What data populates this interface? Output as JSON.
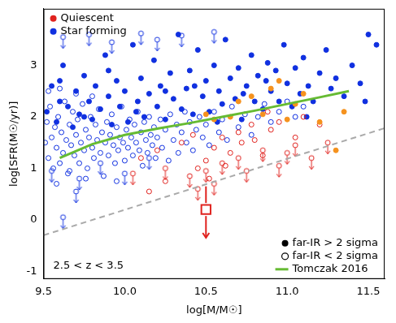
{
  "chart_data": {
    "type": "scatter",
    "x_label": "log[M/M☉]",
    "y_label": "log[SFR(M☉/yr)]",
    "annotation": "2.5 < z < 3.5",
    "xlim": [
      9.5,
      11.6
    ],
    "xticks": [
      9.5,
      {
        "value": 10,
        "label": "10.0"
      },
      10.5,
      {
        "value": 11,
        "label": "11.0"
      },
      11.5
    ],
    "ylim": [
      -1.15,
      4.1
    ],
    "yticks": [
      -1,
      0,
      1,
      2,
      3
    ],
    "grid": false,
    "legends": [
      {
        "legend": "upper left",
        "entries": [
          {
            "name": "Quiescent",
            "color": "#e0221e",
            "marker": "circle"
          },
          {
            "name": "Star forming",
            "color": "#1030e0",
            "marker": "circle"
          }
        ]
      },
      {
        "legend": "lower right",
        "entries": [
          {
            "name": "far-IR > 2 sigma",
            "color": "#000000",
            "marker": "circle"
          },
          {
            "name": "far-IR < 2 sigma",
            "color": "#000000",
            "marker": "circle_open"
          },
          {
            "name": "Tomczak 2016",
            "color": "#66bb33",
            "marker": "line"
          }
        ]
      }
    ],
    "series": [
      {
        "type": "scatter",
        "color": "#1030e0",
        "marker": "circle_open",
        "x": [
          9.51,
          9.52,
          9.53,
          9.54,
          9.55,
          9.56,
          9.57,
          9.58,
          9.59,
          9.6,
          9.61,
          9.62,
          9.63,
          9.64,
          9.65,
          9.66,
          9.67,
          9.68,
          9.69,
          9.7,
          9.71,
          9.72,
          9.73,
          9.74,
          9.75,
          9.76,
          9.77,
          9.78,
          9.79,
          9.8,
          9.81,
          9.82,
          9.83,
          9.84,
          9.85,
          9.86,
          9.87,
          9.88,
          9.89,
          9.9,
          9.91,
          9.92,
          9.93,
          9.94,
          9.95,
          9.96,
          9.97,
          9.98,
          9.99,
          10.0,
          10.01,
          10.02,
          10.03,
          10.04,
          10.05,
          10.06,
          10.07,
          10.08,
          10.09,
          10.1,
          10.11,
          10.12,
          10.13,
          10.14,
          10.15,
          10.16,
          10.17,
          10.18,
          10.19,
          10.2,
          10.22,
          10.23,
          10.25,
          10.27,
          10.28,
          10.3,
          10.32,
          10.33,
          10.35,
          10.37,
          10.38,
          10.4,
          10.42,
          10.44,
          10.46,
          10.48,
          10.5,
          10.52,
          10.55,
          10.58,
          10.6,
          10.63,
          10.66,
          10.7,
          10.74,
          10.78,
          10.82,
          10.86,
          10.9,
          10.95,
          11.0,
          11.05,
          11.1,
          9.53,
          9.6,
          9.7,
          9.8,
          9.95,
          9.58,
          9.66,
          9.76
        ],
        "values": [
          1.5,
          1.9,
          1.2,
          2.2,
          1.6,
          1.0,
          1.8,
          1.4,
          2.0,
          1.1,
          1.7,
          1.3,
          2.3,
          1.55,
          0.9,
          1.85,
          1.45,
          2.1,
          1.25,
          1.65,
          1.95,
          1.1,
          1.5,
          2.25,
          1.35,
          1.75,
          1.0,
          1.6,
          2.0,
          1.4,
          1.2,
          1.85,
          1.55,
          2.15,
          1.3,
          1.7,
          0.85,
          1.5,
          1.9,
          1.25,
          1.65,
          2.05,
          1.45,
          1.1,
          1.8,
          1.35,
          1.6,
          2.2,
          1.5,
          1.15,
          1.75,
          1.4,
          1.95,
          1.6,
          1.25,
          1.85,
          1.5,
          2.1,
          1.35,
          1.7,
          1.05,
          1.9,
          1.55,
          1.3,
          2.0,
          1.65,
          1.45,
          1.8,
          1.2,
          1.6,
          1.95,
          1.4,
          1.75,
          1.15,
          2.05,
          1.55,
          1.85,
          1.3,
          1.7,
          2.1,
          1.5,
          1.9,
          1.35,
          1.75,
          2.0,
          1.6,
          1.85,
          1.45,
          2.1,
          1.7,
          1.95,
          1.55,
          2.2,
          1.8,
          2.05,
          1.65,
          2.0,
          2.25,
          1.9,
          2.1,
          2.3,
          2.0,
          2.2,
          2.5,
          2.55,
          2.45,
          2.4,
          0.75,
          0.7,
          0.95,
          0.8
        ]
      },
      {
        "type": "scatter",
        "color": "#1030e0",
        "marker": "circle_open_arrow",
        "x": [
          9.62,
          9.78,
          9.92,
          10.1,
          10.2,
          10.35,
          10.55,
          9.55,
          9.72,
          9.85,
          10.0,
          10.15,
          9.62,
          9.7
        ],
        "values": [
          3.55,
          3.6,
          3.45,
          3.62,
          3.5,
          3.58,
          3.65,
          0.95,
          0.8,
          1.1,
          0.9,
          1.2,
          0.05,
          0.55
        ]
      },
      {
        "type": "scatter",
        "color": "#1030e0",
        "marker": "circle",
        "x": [
          9.52,
          9.55,
          9.58,
          9.6,
          9.62,
          9.65,
          9.68,
          9.7,
          9.72,
          9.75,
          9.78,
          9.8,
          9.82,
          9.85,
          9.88,
          9.9,
          9.92,
          9.95,
          9.97,
          10.0,
          10.02,
          10.05,
          10.08,
          10.1,
          10.12,
          10.15,
          10.18,
          10.2,
          10.22,
          10.25,
          10.28,
          10.3,
          10.33,
          10.35,
          10.38,
          10.4,
          10.42,
          10.45,
          10.48,
          10.5,
          10.52,
          10.55,
          10.58,
          10.6,
          10.62,
          10.65,
          10.68,
          10.7,
          10.72,
          10.75,
          10.78,
          10.8,
          10.82,
          10.85,
          10.88,
          10.9,
          10.93,
          10.95,
          10.98,
          11.0,
          11.03,
          11.05,
          11.08,
          11.1,
          11.13,
          11.16,
          11.2,
          11.24,
          11.27,
          11.3,
          11.35,
          11.4,
          11.45,
          11.5,
          11.55,
          9.6,
          9.75,
          9.9,
          10.07,
          10.25,
          10.43,
          10.57,
          10.73,
          10.87,
          11.12,
          11.48
        ],
        "values": [
          2.1,
          2.6,
          1.9,
          2.3,
          3.0,
          2.2,
          1.8,
          2.5,
          2.05,
          2.8,
          2.3,
          1.95,
          2.6,
          2.15,
          3.2,
          2.4,
          1.85,
          2.7,
          2.2,
          2.5,
          1.9,
          3.4,
          2.3,
          2.75,
          2.0,
          2.45,
          3.1,
          2.2,
          2.6,
          1.95,
          2.85,
          2.35,
          3.6,
          2.15,
          2.55,
          2.9,
          2.05,
          3.3,
          2.4,
          2.7,
          2.1,
          3.0,
          2.5,
          2.25,
          3.5,
          2.75,
          2.35,
          2.95,
          1.95,
          2.6,
          3.2,
          2.3,
          2.8,
          2.15,
          3.05,
          2.5,
          2.9,
          2.3,
          3.4,
          2.65,
          2.2,
          2.95,
          2.45,
          3.15,
          2.6,
          2.3,
          2.85,
          3.3,
          2.55,
          2.75,
          2.4,
          3.0,
          2.65,
          3.6,
          3.4,
          2.7,
          2.0,
          2.9,
          2.1,
          2.5,
          2.6,
          1.9,
          2.45,
          2.7,
          2.0,
          2.3
        ]
      },
      {
        "type": "scatter",
        "color": "#e0221e",
        "marker": "circle_open",
        "x": [
          10.1,
          10.2,
          10.35,
          10.45,
          10.5,
          10.52,
          10.55,
          10.6,
          10.65,
          10.7,
          10.72,
          10.78,
          10.8,
          10.85,
          10.9,
          10.95,
          11.05,
          11.1,
          11.2,
          10.25,
          10.15,
          10.42,
          10.62,
          10.88
        ],
        "values": [
          1.2,
          1.35,
          1.5,
          1.0,
          1.15,
          0.8,
          1.4,
          1.6,
          1.3,
          1.7,
          1.5,
          1.85,
          1.55,
          1.25,
          1.75,
          1.9,
          1.6,
          2.0,
          1.85,
          0.75,
          0.55,
          1.65,
          1.05,
          2.1
        ]
      },
      {
        "type": "scatter",
        "color": "#e0221e",
        "marker": "circle_open_arrow",
        "x": [
          10.05,
          10.25,
          10.4,
          10.5,
          10.55,
          10.6,
          10.7,
          10.75,
          10.85,
          10.95,
          11.0,
          11.05,
          11.15,
          11.25,
          10.45
        ],
        "values": [
          0.9,
          1.0,
          0.85,
          0.95,
          0.7,
          1.1,
          1.2,
          0.95,
          1.35,
          1.05,
          1.3,
          1.45,
          1.2,
          1.5,
          0.6
        ]
      },
      {
        "type": "scatter",
        "color": "#f5921e",
        "marker": "circle",
        "x": [
          10.5,
          10.55,
          10.7,
          10.78,
          10.85,
          10.9,
          11.0,
          11.1,
          11.2,
          11.3,
          11.35,
          10.95,
          11.05,
          10.65
        ],
        "values": [
          2.05,
          1.95,
          2.3,
          2.4,
          2.05,
          2.55,
          1.95,
          2.45,
          1.9,
          1.35,
          2.1,
          2.7,
          2.25,
          2.0
        ]
      },
      {
        "type": "line",
        "color": "#aaaaaa",
        "line_style": "dashed",
        "x": [
          9.5,
          11.6
        ],
        "values": [
          -0.3,
          1.78
        ]
      },
      {
        "type": "line",
        "color": "#66bb33",
        "line_style": "solid",
        "x": [
          9.6,
          9.8,
          10.0,
          10.2,
          10.4,
          10.6,
          10.8,
          11.0,
          11.2,
          11.38
        ],
        "values": [
          1.2,
          1.47,
          1.65,
          1.77,
          1.88,
          2.0,
          2.12,
          2.25,
          2.38,
          2.5
        ]
      },
      {
        "type": "scatter",
        "color": "#e0221e",
        "marker": "square_open_arrow",
        "x": [
          10.5
        ],
        "values": [
          0.2
        ],
        "error_high": [
          0.65
        ],
        "error_low": [
          -0.35
        ]
      }
    ]
  }
}
